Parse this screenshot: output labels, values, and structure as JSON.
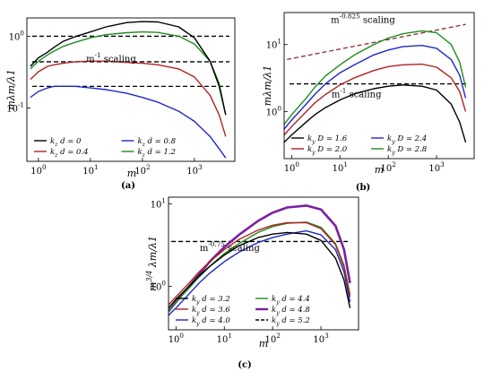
{
  "chart_data": [
    {
      "panel": "(a)",
      "type": "line",
      "ylabel": "mλm/λ1",
      "xlabel": "m",
      "x_scale": "log",
      "y_scale": "log",
      "xlim": [
        0.6,
        6000
      ],
      "ylim": [
        0.018,
        1.8
      ],
      "x_ticks": [
        {
          "v": 1,
          "label": "10^0"
        },
        {
          "v": 10,
          "label": "10^1"
        },
        {
          "v": 100,
          "label": "10^2"
        },
        {
          "v": 1000,
          "label": "10^3"
        }
      ],
      "y_ticks": [
        {
          "v": 1,
          "label": "10^0"
        },
        {
          "v": 0.1,
          "label": "10^-1"
        }
      ],
      "legend_placement": "lower-left",
      "legend_cols": 2,
      "annotations": [
        {
          "text": "m^-1 scaling",
          "x": 25,
          "y": 0.44
        }
      ],
      "series": [
        {
          "name": "k_z d = 0",
          "color": "#000000",
          "x": [
            0.7,
            1,
            1.5,
            2,
            3,
            5,
            10,
            20,
            50,
            100,
            200,
            500,
            1000,
            2000,
            3000,
            4000
          ],
          "y": [
            0.38,
            0.5,
            0.6,
            0.7,
            0.85,
            0.98,
            1.15,
            1.35,
            1.55,
            1.6,
            1.58,
            1.35,
            0.95,
            0.45,
            0.2,
            0.08
          ]
        },
        {
          "name": "k_z d = 0.4",
          "color": "#b22222",
          "x": [
            0.7,
            1,
            1.5,
            2,
            3,
            5,
            10,
            20,
            50,
            100,
            200,
            500,
            1000,
            2000,
            3000,
            4000
          ],
          "y": [
            0.25,
            0.32,
            0.38,
            0.4,
            0.42,
            0.44,
            0.45,
            0.45,
            0.43,
            0.42,
            0.4,
            0.35,
            0.27,
            0.15,
            0.08,
            0.04
          ]
        },
        {
          "name": "k_z d = 0.8",
          "color": "#1e28c8",
          "x": [
            0.7,
            1,
            1.5,
            2,
            3,
            5,
            10,
            20,
            50,
            100,
            200,
            500,
            1000,
            2000,
            3000,
            4000
          ],
          "y": [
            0.14,
            0.17,
            0.19,
            0.2,
            0.2,
            0.2,
            0.19,
            0.18,
            0.16,
            0.14,
            0.12,
            0.09,
            0.065,
            0.04,
            0.027,
            0.02
          ]
        },
        {
          "name": "k_z d = 1.2",
          "color": "#1e8c1e",
          "x": [
            0.7,
            1,
            1.5,
            2,
            3,
            5,
            10,
            20,
            50,
            100,
            200,
            500,
            1000,
            2000,
            3000,
            4000
          ],
          "y": [
            0.35,
            0.45,
            0.55,
            0.62,
            0.72,
            0.82,
            0.95,
            1.05,
            1.12,
            1.15,
            1.13,
            1.0,
            0.78,
            0.45,
            0.22,
            0.08
          ]
        }
      ],
      "reference_lines": [
        {
          "y": 1.0
        },
        {
          "y": 0.44
        },
        {
          "y": 0.2
        }
      ]
    },
    {
      "panel": "(b)",
      "type": "line",
      "ylabel": "mλm/λ1",
      "xlabel": "m",
      "x_scale": "log",
      "y_scale": "log",
      "xlim": [
        0.7,
        6000
      ],
      "ylim": [
        0.2,
        30
      ],
      "x_ticks": [
        {
          "v": 1,
          "label": "10^0"
        },
        {
          "v": 10,
          "label": "10^1"
        },
        {
          "v": 100,
          "label": "10^2"
        },
        {
          "v": 1000,
          "label": "10^3"
        }
      ],
      "y_ticks": [
        {
          "v": 1,
          "label": "10^0"
        },
        {
          "v": 10,
          "label": "10^1"
        }
      ],
      "legend_placement": "lower-left",
      "legend_cols": 2,
      "annotations": [
        {
          "text": "m^-0.825 scaling",
          "x": 30,
          "y": 21
        },
        {
          "text": "m^-1 scaling",
          "x": 22,
          "y": 1.65
        }
      ],
      "series": [
        {
          "name": "k_y D = 1.6",
          "color": "#000000",
          "x": [
            0.7,
            1,
            2,
            3,
            5,
            10,
            20,
            50,
            100,
            200,
            500,
            1000,
            2000,
            3000,
            4000
          ],
          "y": [
            0.35,
            0.45,
            0.7,
            0.9,
            1.15,
            1.5,
            1.85,
            2.2,
            2.4,
            2.5,
            2.4,
            2.1,
            1.3,
            0.7,
            0.35
          ]
        },
        {
          "name": "k_y D = 2.0",
          "color": "#b22222",
          "x": [
            0.7,
            1,
            2,
            3,
            5,
            10,
            20,
            50,
            100,
            200,
            500,
            1000,
            2000,
            3000,
            4000
          ],
          "y": [
            0.45,
            0.6,
            1.0,
            1.35,
            1.8,
            2.5,
            3.2,
            4.1,
            4.7,
            5.0,
            5.1,
            4.6,
            3.2,
            2.0,
            1.0
          ]
        },
        {
          "name": "k_y D = 2.4",
          "color": "#1e28c8",
          "x": [
            0.7,
            1,
            2,
            3,
            5,
            10,
            20,
            50,
            100,
            200,
            500,
            1000,
            2000,
            3000,
            4000
          ],
          "y": [
            0.55,
            0.75,
            1.3,
            1.8,
            2.6,
            3.8,
            5.0,
            7.0,
            8.3,
            9.3,
            9.7,
            8.8,
            6.0,
            3.5,
            1.6
          ]
        },
        {
          "name": "k_y D = 2.8",
          "color": "#1e8c1e",
          "x": [
            0.7,
            1,
            2,
            3,
            5,
            10,
            20,
            50,
            100,
            200,
            500,
            1000,
            2000,
            3000,
            4000
          ],
          "y": [
            0.65,
            0.9,
            1.6,
            2.3,
            3.4,
            5.0,
            7.0,
            10.0,
            12.5,
            14.5,
            16.0,
            15.0,
            10.0,
            5.5,
            2.3
          ]
        }
      ],
      "reference_lines": [
        {
          "y": 2.6
        },
        {
          "kind": "power",
          "x1": 0.8,
          "y1": 6.0,
          "x2": 4000,
          "y2": 20.0
        }
      ]
    },
    {
      "panel": "(c)",
      "type": "line",
      "ylabel": "m^3/4 λm/λ1",
      "xlabel": "m",
      "x_scale": "log",
      "y_scale": "log",
      "xlim": [
        0.7,
        6000
      ],
      "ylim": [
        0.3,
        12
      ],
      "x_ticks": [
        {
          "v": 1,
          "label": "10^0"
        },
        {
          "v": 10,
          "label": "10^1"
        },
        {
          "v": 100,
          "label": "10^2"
        },
        {
          "v": 1000,
          "label": "10^3"
        }
      ],
      "y_ticks": [
        {
          "v": 1,
          "label": "10^0"
        },
        {
          "v": 10,
          "label": "10^1"
        }
      ],
      "legend_placement": "lower-left",
      "legend_cols": 2,
      "annotations": [
        {
          "text": "m^-0.75 scaling",
          "x": 13,
          "y": 2.7
        }
      ],
      "series": [
        {
          "name": "k_y d = 3.2",
          "color": "#000000",
          "x": [
            0.7,
            1,
            2,
            3,
            5,
            10,
            20,
            50,
            100,
            200,
            500,
            1000,
            2000,
            3000,
            4000
          ],
          "y": [
            0.55,
            0.7,
            1.05,
            1.35,
            1.75,
            2.4,
            3.1,
            3.9,
            4.3,
            4.5,
            4.3,
            3.6,
            2.2,
            1.2,
            0.55
          ]
        },
        {
          "name": "k_y d = 3.6",
          "color": "#b22222",
          "x": [
            0.7,
            1,
            2,
            3,
            5,
            10,
            20,
            50,
            100,
            200,
            500,
            1000,
            2000,
            3000,
            4000
          ],
          "y": [
            0.6,
            0.75,
            1.15,
            1.5,
            2.0,
            2.8,
            3.7,
            4.8,
            5.5,
            5.9,
            5.9,
            5.0,
            3.2,
            1.7,
            0.75
          ]
        },
        {
          "name": "k_y d = 4.0",
          "color": "#1e28c8",
          "x": [
            0.7,
            1,
            2,
            3,
            5,
            10,
            20,
            50,
            100,
            200,
            500,
            1000,
            2000,
            3000,
            4000
          ],
          "y": [
            0.45,
            0.55,
            0.85,
            1.1,
            1.45,
            2.0,
            2.6,
            3.4,
            3.9,
            4.3,
            4.7,
            4.2,
            2.8,
            1.5,
            0.65
          ]
        },
        {
          "name": "k_y d = 4.4",
          "color": "#1e8c1e",
          "x": [
            0.7,
            1,
            2,
            3,
            5,
            10,
            20,
            50,
            100,
            200,
            500,
            1000,
            2000,
            3000,
            4000
          ],
          "y": [
            0.5,
            0.65,
            1.0,
            1.3,
            1.75,
            2.5,
            3.3,
            4.5,
            5.3,
            5.8,
            6.0,
            5.2,
            3.3,
            1.8,
            0.8
          ]
        },
        {
          "name": "k_y d = 4.8",
          "color": "#7a1fa2",
          "x": [
            0.7,
            1,
            2,
            3,
            5,
            10,
            20,
            50,
            100,
            200,
            500,
            1000,
            2000,
            3000,
            4000
          ],
          "y": [
            0.5,
            0.65,
            1.05,
            1.4,
            2.0,
            3.0,
            4.2,
            6.2,
            7.8,
            9.0,
            9.5,
            8.5,
            5.4,
            2.8,
            1.1
          ]
        },
        {
          "name": "k_y d = 5.2",
          "color": "#000000",
          "dashed": true,
          "x": [
            0.8,
            4000
          ],
          "y": [
            3.5,
            3.5
          ]
        }
      ],
      "reference_lines": []
    }
  ]
}
